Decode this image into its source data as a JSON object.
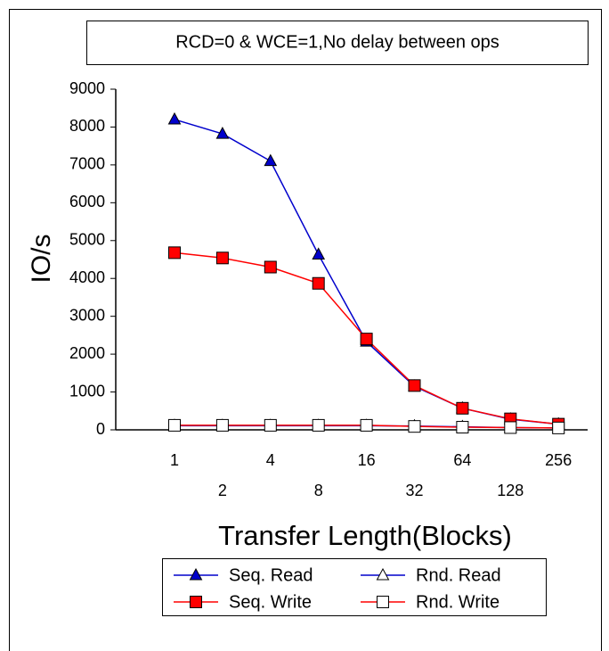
{
  "chart_data": {
    "type": "line",
    "title": "RCD=0 & WCE=1,No delay between ops",
    "xlabel": "Transfer Length(Blocks)",
    "ylabel": "IO/s",
    "categories": [
      "1",
      "2",
      "4",
      "8",
      "16",
      "32",
      "64",
      "128",
      "256"
    ],
    "series": [
      {
        "name": "Seq. Read",
        "color": "#0000cc",
        "marker": "triangle",
        "filled": true,
        "values": [
          8200,
          7820,
          7100,
          4630,
          2330,
          1150,
          570,
          280,
          150
        ]
      },
      {
        "name": "Rnd. Read",
        "color": "#0000cc",
        "marker": "triangle",
        "filled": false,
        "values": [
          110,
          110,
          110,
          110,
          110,
          100,
          80,
          60,
          50
        ]
      },
      {
        "name": "Seq. Write",
        "color": "#ff0000",
        "marker": "square",
        "filled": true,
        "values": [
          4680,
          4540,
          4300,
          3870,
          2400,
          1170,
          570,
          290,
          150
        ]
      },
      {
        "name": "Rnd. Write",
        "color": "#ff0000",
        "marker": "square",
        "filled": false,
        "values": [
          120,
          120,
          120,
          120,
          120,
          90,
          70,
          60,
          50
        ]
      }
    ],
    "ylim": [
      0,
      9000
    ],
    "yticks": [
      0,
      1000,
      2000,
      3000,
      4000,
      5000,
      6000,
      7000,
      8000,
      9000
    ],
    "grid": false,
    "legend": "bottom"
  }
}
